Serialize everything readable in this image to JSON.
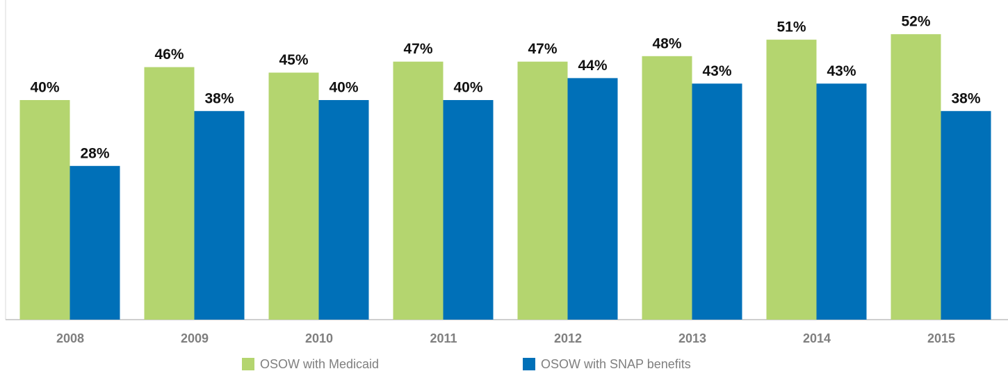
{
  "chart_data": {
    "type": "bar",
    "categories": [
      "2008",
      "2009",
      "2010",
      "2011",
      "2012",
      "2013",
      "2014",
      "2015"
    ],
    "series": [
      {
        "name": "OSOW with Medicaid",
        "color": "#b4d56f",
        "values": [
          40,
          46,
          45,
          47,
          47,
          48,
          51,
          52
        ],
        "value_labels": [
          "40%",
          "46%",
          "45%",
          "47%",
          "47%",
          "48%",
          "51%",
          "52%"
        ]
      },
      {
        "name": "OSOW with SNAP benefits",
        "color": "#0070b8",
        "values": [
          28,
          38,
          40,
          40,
          44,
          43,
          43,
          38
        ],
        "value_labels": [
          "28%",
          "38%",
          "40%",
          "40%",
          "44%",
          "43%",
          "43%",
          "38%"
        ]
      }
    ],
    "legend": "bottom"
  }
}
